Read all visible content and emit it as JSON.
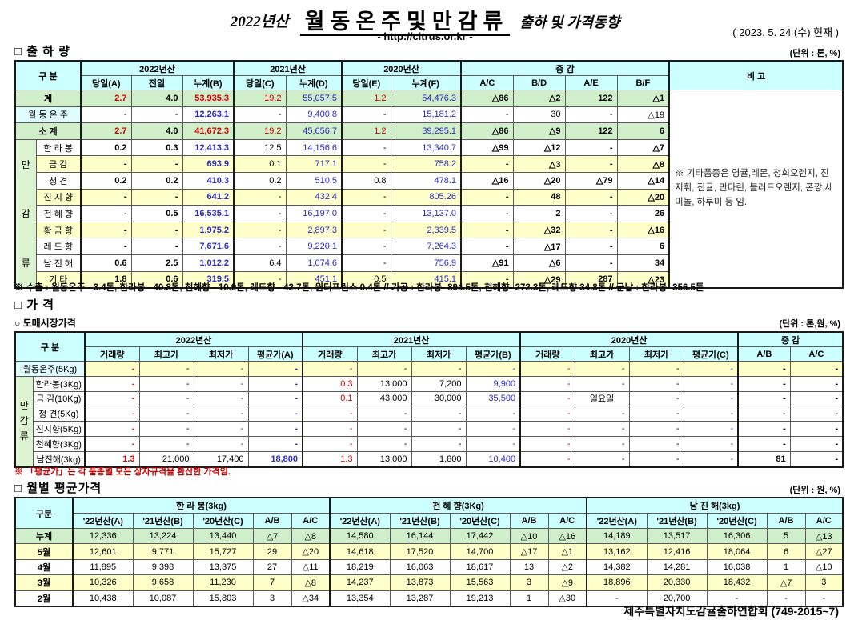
{
  "header": {
    "year_prefix": "2022년산",
    "title_main": "월동온주및만감류",
    "title_suffix": "출하 및 가격동향",
    "url": "- http://citrus.or.kr -",
    "date": "( 2023.  5.  24 (수) 현재 )"
  },
  "colors": {
    "header_bg": "#ccffff",
    "total_row_bg": "#cfeec9",
    "side_label_bg": "#ddf4d2",
    "stripe_yellow": "#ffffc9",
    "onju_label_bg": "#dffcff",
    "value_blue": "#2b2bc4",
    "value_red": "#d40000"
  },
  "shipment": {
    "section_title": "□ 출 하 량",
    "unit": "(단위 : 톤, %)",
    "header": {
      "gubun": "구      분",
      "groups": [
        "2022년산",
        "2021년산",
        "2020년산",
        "증      감"
      ],
      "remark": "비 고",
      "cols": [
        "당일(A)",
        "전일",
        "누계(B)",
        "당일(C)",
        "누계(D)",
        "당일(E)",
        "누계(F)",
        "A/C",
        "B/D",
        "A/E",
        "B/F"
      ]
    },
    "side_label": [
      "만",
      "감",
      "류"
    ],
    "remark_text": "※ 기타품종은 영귤,레몬, 청희오렌지, 진지휘, 진귤, 만다린, 블러드오렌지, 폰깡,세미놀, 하루미 등 임.",
    "rows": [
      {
        "label": "계",
        "type": "total",
        "bg": "green",
        "cells": [
          "2.7",
          "4.0",
          "53,935.3",
          "19.2",
          "55,057.5",
          "1.2",
          "54,476.3",
          "△86",
          "△2",
          "122",
          "△1"
        ]
      },
      {
        "label": "월 동 온 주",
        "type": "onju",
        "bg": "white",
        "cells": [
          "-",
          "-",
          "12,263.1",
          "-",
          "9,400.8",
          "-",
          "15,181.2",
          "-",
          "30",
          "-",
          "△19"
        ]
      },
      {
        "label": "소      계",
        "type": "total",
        "bg": "green",
        "cells": [
          "2.7",
          "4.0",
          "41,672.3",
          "19.2",
          "45,656.7",
          "1.2",
          "39,295.1",
          "△86",
          "△9",
          "122",
          "6"
        ]
      },
      {
        "label": "한 라 봉",
        "type": "fruit",
        "bg": "white",
        "cells": [
          "0.2",
          "0.3",
          "12,413.3",
          "12.5",
          "14,156.6",
          "-",
          "13,340.7",
          "△99",
          "△12",
          "-",
          "△7"
        ]
      },
      {
        "label": "금      감",
        "type": "fruit",
        "bg": "yellow",
        "cells": [
          "-",
          "-",
          "693.9",
          "0.1",
          "717.1",
          "-",
          "758.2",
          "-",
          "△3",
          "-",
          "△8"
        ]
      },
      {
        "label": "청      견",
        "type": "fruit",
        "bg": "white",
        "cells": [
          "0.2",
          "0.2",
          "410.3",
          "0.2",
          "510.5",
          "0.8",
          "478.1",
          "△16",
          "△20",
          "△79",
          "△14"
        ]
      },
      {
        "label": "진 지 향",
        "type": "fruit",
        "bg": "yellow",
        "cells": [
          "-",
          "-",
          "641.2",
          "-",
          "432.4",
          "-",
          "805.26",
          "-",
          "48",
          "-",
          "△20"
        ]
      },
      {
        "label": "천 혜 향",
        "type": "fruit",
        "bg": "white",
        "cells": [
          "-",
          "0.5",
          "16,535.1",
          "-",
          "16,197.0",
          "-",
          "13,137.0",
          "-",
          "2",
          "-",
          "26"
        ]
      },
      {
        "label": "황 금 향",
        "type": "fruit",
        "bg": "yellow",
        "cells": [
          "-",
          "-",
          "1,975.2",
          "-",
          "2,897.3",
          "-",
          "2,339.5",
          "-",
          "△32",
          "-",
          "△16"
        ]
      },
      {
        "label": "레 드 향",
        "type": "fruit",
        "bg": "white",
        "cells": [
          "-",
          "-",
          "7,671.6",
          "-",
          "9,220.1",
          "-",
          "7,264.3",
          "-",
          "△17",
          "-",
          "6"
        ]
      },
      {
        "label": "남 진 해",
        "type": "fruit",
        "bg": "white",
        "cells": [
          "0.6",
          "2.5",
          "1,012.2",
          "6.4",
          "1,074.6",
          "-",
          "756.9",
          "△91",
          "△6",
          "-",
          "34"
        ]
      },
      {
        "label": "기      타",
        "type": "fruit",
        "bg": "yellow",
        "cells": [
          "1.8",
          "0.6",
          "319.5",
          "-",
          "451.1",
          "0.5",
          "415.1",
          "-",
          "△29",
          "287",
          "△23"
        ]
      }
    ],
    "footnote": "※ 수출 : 월동온주 - 3.4톤, 한라봉 - 40.8톤, 천혜향 - 10.9톤, 레드향 - 42.7톤, 윈터프린스 0.4톤 //  가공  :  한라봉- 894.5톤, 천혜향- 272.3톤, 레드향 34.8톤  //  군납 : 한라봉- 356.5톤"
  },
  "price": {
    "section_title": "□ 가      격",
    "subsection": "○ 도매시장가격",
    "unit": "(단위 : 톤,원, %)",
    "header": {
      "gubun": "구      분",
      "groups": [
        "2022년산",
        "2021년산",
        "2020년산",
        "증    감"
      ],
      "cols": [
        "거래량",
        "최고가",
        "최저가",
        "평균가(A)",
        "거래량",
        "최고가",
        "최저가",
        "평균가(B)",
        "거래량",
        "최고가",
        "최저가",
        "평균가(C)",
        "A/B",
        "A/C"
      ]
    },
    "side_label": [
      "만",
      "감",
      "류"
    ],
    "rows": [
      {
        "label": "월동온주(5Kg)",
        "type": "onju",
        "bg": "yellow",
        "cells": [
          "-",
          "-",
          "-",
          "-",
          "-",
          "-",
          "-",
          "-",
          "-",
          "-",
          "-",
          "-",
          "-",
          "-"
        ]
      },
      {
        "label": "한라봉(3Kg)",
        "type": "fruit",
        "bg": "white",
        "cells": [
          "-",
          "-",
          "-",
          "-",
          "0.3",
          "13,000",
          "7,200",
          "9,900",
          "-",
          "-",
          "-",
          "-",
          "-",
          "-"
        ]
      },
      {
        "label": "금 감(10Kg)",
        "type": "fruit",
        "bg": "white",
        "cells": [
          "-",
          "-",
          "-",
          "-",
          "0.1",
          "43,000",
          "30,000",
          "35,500",
          "-",
          "일요일",
          "-",
          "-",
          "-",
          "-"
        ]
      },
      {
        "label": "청   견(5Kg)",
        "type": "fruit",
        "bg": "white",
        "cells": [
          "-",
          "-",
          "-",
          "-",
          "-",
          "-",
          "-",
          "-",
          "-",
          "-",
          "-",
          "-",
          "-",
          "-"
        ]
      },
      {
        "label": "진지향(5Kg)",
        "type": "fruit",
        "bg": "white",
        "cells": [
          "-",
          "-",
          "-",
          "-",
          "-",
          "-",
          "-",
          "-",
          "-",
          "-",
          "-",
          "-",
          "-",
          "-"
        ]
      },
      {
        "label": "천혜향(3Kg)",
        "type": "fruit",
        "bg": "white",
        "cells": [
          "-",
          "-",
          "-",
          "-",
          "-",
          "-",
          "-",
          "-",
          "-",
          "-",
          "-",
          "-",
          "-",
          "-"
        ]
      },
      {
        "label": "남진해(3kg)",
        "type": "fruit",
        "bg": "white",
        "cells": [
          "1.3",
          "21,000",
          "17,400",
          "18,800",
          "1.3",
          "13,000",
          "1,800",
          "10,400",
          "-",
          "-",
          "-",
          "-",
          "81",
          "-"
        ]
      }
    ],
    "footnote": "※  「평균가」는 각 품종별 모든 상자규격을 환산한 가격임."
  },
  "monthly": {
    "section_title": "□ 월별 평균가격",
    "unit": "(단위 : 원, %)",
    "header": {
      "gubun": "구분",
      "groups": [
        "한 라 봉(3kg)",
        "천 혜 향(3Kg)",
        "남 진 해(3kg)"
      ],
      "cols": [
        "'22년산(A)",
        "'21년산(B)",
        "'20년산(C)",
        "A/B",
        "A/C"
      ]
    },
    "rows": [
      {
        "label": "누계",
        "bg": "green",
        "cells": [
          "12,336",
          "13,224",
          "13,440",
          "△7",
          "△8",
          "14,580",
          "16,144",
          "17,442",
          "△10",
          "△16",
          "14,189",
          "13,517",
          "16,306",
          "5",
          "△13"
        ]
      },
      {
        "label": "5월",
        "bg": "yellow",
        "cells": [
          "12,601",
          "9,771",
          "15,727",
          "29",
          "△20",
          "14,618",
          "17,520",
          "14,700",
          "△17",
          "△1",
          "13,162",
          "12,416",
          "18,064",
          "6",
          "△27"
        ]
      },
      {
        "label": "4월",
        "bg": "white",
        "cells": [
          "11,895",
          "9,398",
          "13,375",
          "27",
          "△11",
          "18,219",
          "16,063",
          "18,617",
          "13",
          "△2",
          "14,382",
          "14,281",
          "16,038",
          "1",
          "△10"
        ]
      },
      {
        "label": "3월",
        "bg": "yellow",
        "cells": [
          "10,326",
          "9,658",
          "11,230",
          "7",
          "△8",
          "14,237",
          "13,873",
          "15,563",
          "3",
          "△9",
          "18,896",
          "20,330",
          "18,432",
          "△7",
          "3"
        ]
      },
      {
        "label": "2월",
        "bg": "white",
        "cells": [
          "10,438",
          "10,087",
          "15,803",
          "3",
          "△34",
          "13,354",
          "13,287",
          "19,213",
          "1",
          "△30",
          "-",
          "20,700",
          "-",
          "-",
          "-"
        ]
      }
    ]
  },
  "footer": {
    "text": "제주특별자치도감귤출하연합회 (749-2015~7)"
  }
}
